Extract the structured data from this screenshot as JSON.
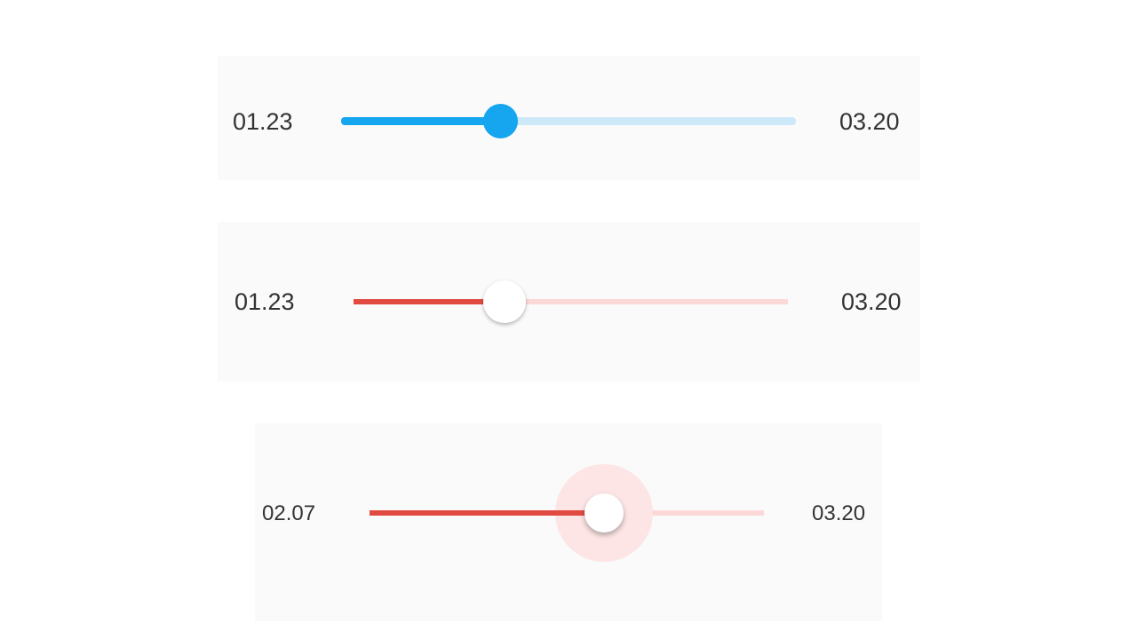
{
  "sliders": [
    {
      "start_label": "01.23",
      "end_label": "03.20",
      "value_fraction": 0.348,
      "style": "blue-filled-thumb",
      "colors": {
        "active": "#16a6f0",
        "inactive": "#cde8f9",
        "thumb": "#16a6f0"
      }
    },
    {
      "start_label": "01.23",
      "end_label": "03.20",
      "value_fraction": 0.35,
      "style": "red-white-thumb",
      "colors": {
        "active": "#e04a41",
        "inactive": "#fbd9d8",
        "thumb": "#ffffff"
      }
    },
    {
      "start_label": "02.07",
      "end_label": "03.20",
      "value_fraction": 0.594,
      "style": "red-white-thumb-focused",
      "colors": {
        "active": "#e04a41",
        "inactive": "#fbd9d8",
        "thumb": "#ffffff",
        "halo": "#fce5e4"
      }
    }
  ]
}
